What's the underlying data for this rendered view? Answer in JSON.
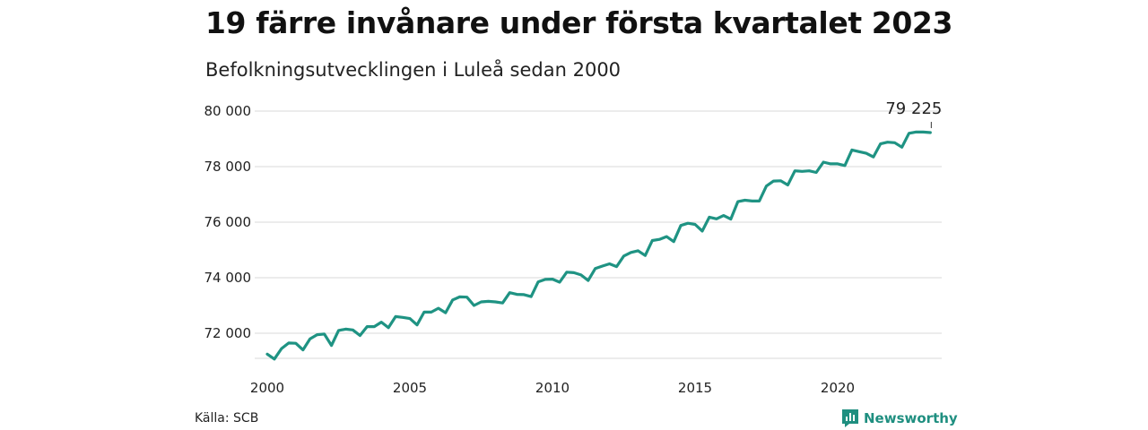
{
  "header": {
    "title": "19 färre invånare under första kvartalet 2023",
    "subtitle": "Befolkningsutvecklingen i Luleå sedan 2000"
  },
  "footer": {
    "source": "Källa: SCB",
    "brand": "Newsworthy",
    "brand_icon": "bar-chart-icon"
  },
  "colors": {
    "line": "#1f9383",
    "grid": "#d9d9d9",
    "brand": "#1f8f80"
  },
  "chart_data": {
    "type": "line",
    "title": "19 färre invånare under första kvartalet 2023",
    "subtitle": "Befolkningsutvecklingen i Luleå sedan 2000",
    "xlabel": "",
    "ylabel": "",
    "x_unit": "year (quarterly points)",
    "xlim": [
      2000,
      2023.25
    ],
    "ylim": [
      71000,
      80500
    ],
    "y_ticks": [
      72000,
      74000,
      76000,
      78000,
      80000
    ],
    "y_tick_labels": [
      "72 000",
      "74 000",
      "76 000",
      "78 000",
      "80 000"
    ],
    "x_ticks": [
      2000,
      2005,
      2010,
      2015,
      2020
    ],
    "x_tick_labels": [
      "2000",
      "2005",
      "2010",
      "2015",
      "2020"
    ],
    "grid": "horizontal",
    "legend": "none",
    "annotation": {
      "x": 2023.25,
      "y": 79225,
      "label": "79 225"
    },
    "series": [
      {
        "x": [
          2000.0,
          2000.25,
          2000.5,
          2000.75,
          2001.0,
          2001.25,
          2001.5,
          2001.75,
          2002.0,
          2002.25,
          2002.5,
          2002.75,
          2003.0,
          2003.25,
          2003.5,
          2003.75,
          2004.0,
          2004.25,
          2004.5,
          2004.75,
          2005.0,
          2005.25,
          2005.5,
          2005.75,
          2006.0,
          2006.25,
          2006.5,
          2006.75,
          2007.0,
          2007.25,
          2007.5,
          2007.75,
          2008.0,
          2008.25,
          2008.5,
          2008.75,
          2009.0,
          2009.25,
          2009.5,
          2009.75,
          2010.0,
          2010.25,
          2010.5,
          2010.75,
          2011.0,
          2011.25,
          2011.5,
          2011.75,
          2012.0,
          2012.25,
          2012.5,
          2012.75,
          2013.0,
          2013.25,
          2013.5,
          2013.75,
          2014.0,
          2014.25,
          2014.5,
          2014.75,
          2015.0,
          2015.25,
          2015.5,
          2015.75,
          2016.0,
          2016.25,
          2016.5,
          2016.75,
          2017.0,
          2017.25,
          2017.5,
          2017.75,
          2018.0,
          2018.25,
          2018.5,
          2018.75,
          2019.0,
          2019.25,
          2019.5,
          2019.75,
          2020.0,
          2020.25,
          2020.5,
          2020.75,
          2021.0,
          2021.25,
          2021.5,
          2021.75,
          2022.0,
          2022.25,
          2022.5,
          2022.75,
          2023.0,
          2023.25
        ],
        "values": [
          71250,
          71070,
          71450,
          71650,
          71640,
          71400,
          71800,
          71950,
          71970,
          71560,
          72100,
          72150,
          72120,
          71920,
          72240,
          72240,
          72400,
          72200,
          72600,
          72570,
          72530,
          72300,
          72760,
          72760,
          72900,
          72740,
          73200,
          73310,
          73300,
          73000,
          73130,
          73150,
          73130,
          73090,
          73460,
          73400,
          73390,
          73320,
          73850,
          73940,
          73950,
          73840,
          74200,
          74180,
          74100,
          73900,
          74330,
          74420,
          74500,
          74400,
          74780,
          74910,
          74970,
          74800,
          75340,
          75380,
          75480,
          75300,
          75880,
          75960,
          75920,
          75680,
          76180,
          76120,
          76240,
          76110,
          76740,
          76790,
          76760,
          76760,
          77300,
          77480,
          77490,
          77340,
          77850,
          77830,
          77850,
          77790,
          78160,
          78100,
          78100,
          78040,
          78600,
          78540,
          78480,
          78350,
          78820,
          78880,
          78860,
          78700,
          79200,
          79250,
          79244,
          79225
        ]
      }
    ]
  }
}
